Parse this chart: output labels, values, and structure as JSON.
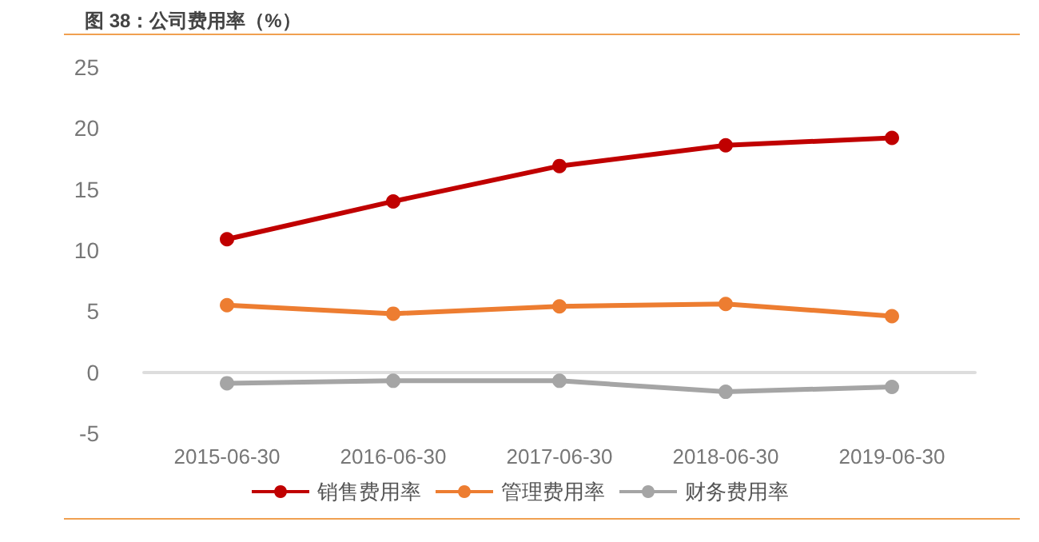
{
  "chart_data": {
    "type": "line",
    "title": "图 38：公司费用率（%）",
    "categories": [
      "2015-06-30",
      "2016-06-30",
      "2017-06-30",
      "2018-06-30",
      "2019-06-30"
    ],
    "series": [
      {
        "name": "销售费用率",
        "color": "#c00000",
        "values": [
          10.9,
          14.0,
          16.9,
          18.6,
          19.2
        ]
      },
      {
        "name": "管理费用率",
        "color": "#ed7d31",
        "values": [
          5.5,
          4.8,
          5.4,
          5.6,
          4.6
        ]
      },
      {
        "name": "财务费用率",
        "color": "#a5a5a5",
        "values": [
          -0.9,
          -0.7,
          -0.7,
          -1.6,
          -1.2
        ]
      }
    ],
    "ylim": [
      -5,
      25
    ],
    "yticks": [
      -5,
      0,
      5,
      10,
      15,
      20,
      25
    ],
    "legend": "bottom",
    "marker": "circle",
    "line_style": "solid"
  }
}
